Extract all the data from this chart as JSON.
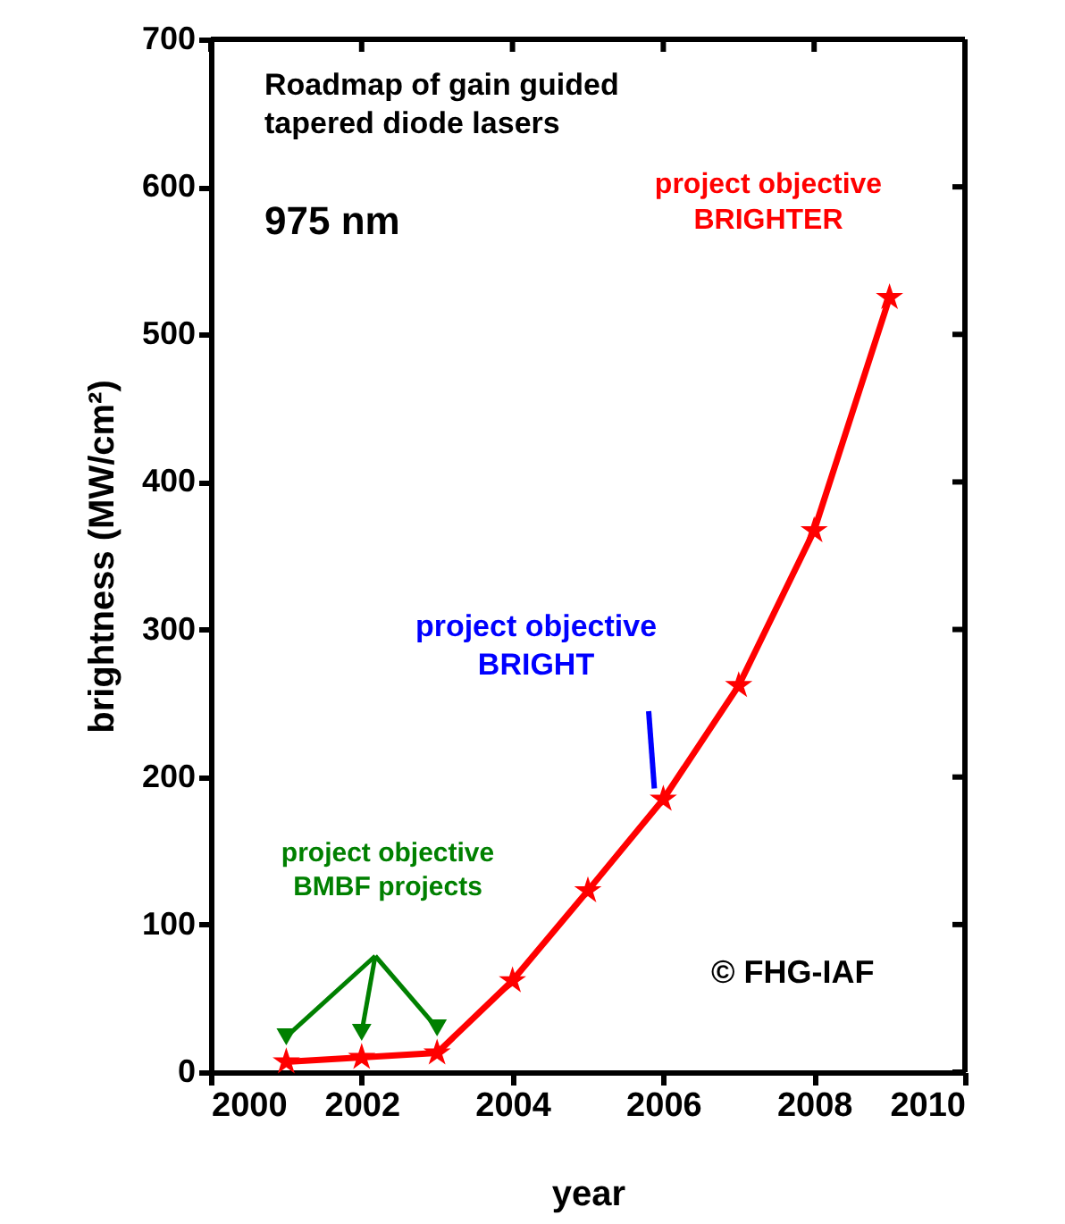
{
  "chart_data": {
    "type": "line",
    "title": "Roadmap of gain guided\ntapered diode lasers",
    "subtitle": "975 nm",
    "xlabel": "year",
    "ylabel": "brightness (MW/cm²)",
    "x": [
      2001,
      2002,
      2003,
      2004,
      2005,
      2006,
      2007,
      2008,
      2009
    ],
    "series": [
      {
        "color": "#ff0000",
        "values": [
          7,
          10,
          13,
          62,
          123,
          185,
          262,
          367,
          525
        ]
      }
    ],
    "xlim": [
      2000,
      2010
    ],
    "xticks": [
      2000,
      2002,
      2004,
      2006,
      2008,
      2010
    ],
    "ylim": [
      0,
      700
    ],
    "yticks": [
      0,
      100,
      200,
      300,
      400,
      500,
      600,
      700
    ],
    "marker": "star",
    "line_style": "solid",
    "grid": false,
    "annotations": [
      "project objective\nBRIGHTER",
      {
        "text": "project objective\nBRIGHT",
        "x": 2006,
        "y": 185
      },
      "project objective\nBMBF projects",
      "© FHG-IAF"
    ]
  }
}
